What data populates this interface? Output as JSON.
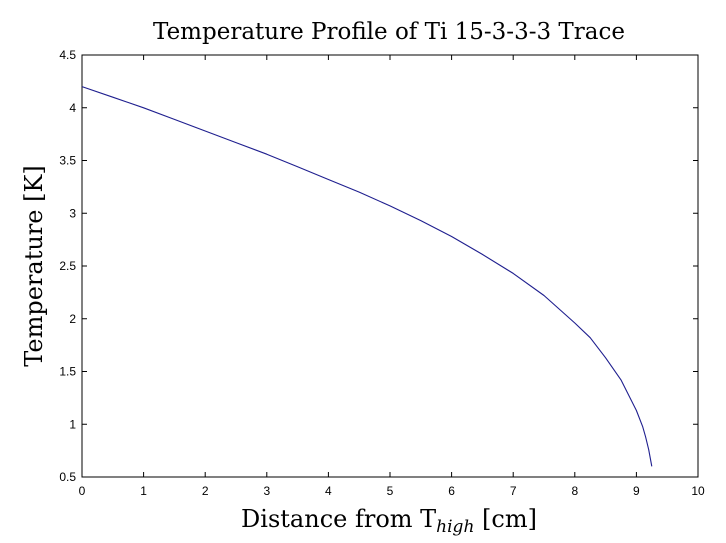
{
  "chart_data": {
    "type": "line",
    "title": "Temperature Profile of Ti 15-3-3-3 Trace",
    "xlabel": "Distance from T",
    "xlabel_sub": "high",
    "xlabel_unit": " [cm]",
    "ylabel": "Temperature [K]",
    "xlim": [
      0,
      10
    ],
    "ylim": [
      0.5,
      4.5
    ],
    "xticks": [
      "0",
      "1",
      "2",
      "3",
      "4",
      "5",
      "6",
      "7",
      "8",
      "9",
      "10"
    ],
    "yticks": [
      "0.5",
      "1",
      "1.5",
      "2",
      "2.5",
      "3",
      "3.5",
      "4",
      "4.5"
    ],
    "grid": false,
    "series": [
      {
        "color": "#1f1f8f",
        "x": [
          0,
          0.5,
          1,
          1.5,
          2,
          2.5,
          3,
          3.5,
          4,
          4.5,
          5,
          5.5,
          6,
          6.5,
          7,
          7.5,
          8,
          8.25,
          8.5,
          8.75,
          9,
          9.1,
          9.15,
          9.2,
          9.25
        ],
        "y": [
          4.2,
          4.1,
          4.0,
          3.89,
          3.78,
          3.67,
          3.56,
          3.44,
          3.32,
          3.2,
          3.07,
          2.93,
          2.78,
          2.61,
          2.43,
          2.22,
          1.96,
          1.82,
          1.63,
          1.42,
          1.13,
          0.98,
          0.88,
          0.76,
          0.6
        ]
      }
    ]
  }
}
